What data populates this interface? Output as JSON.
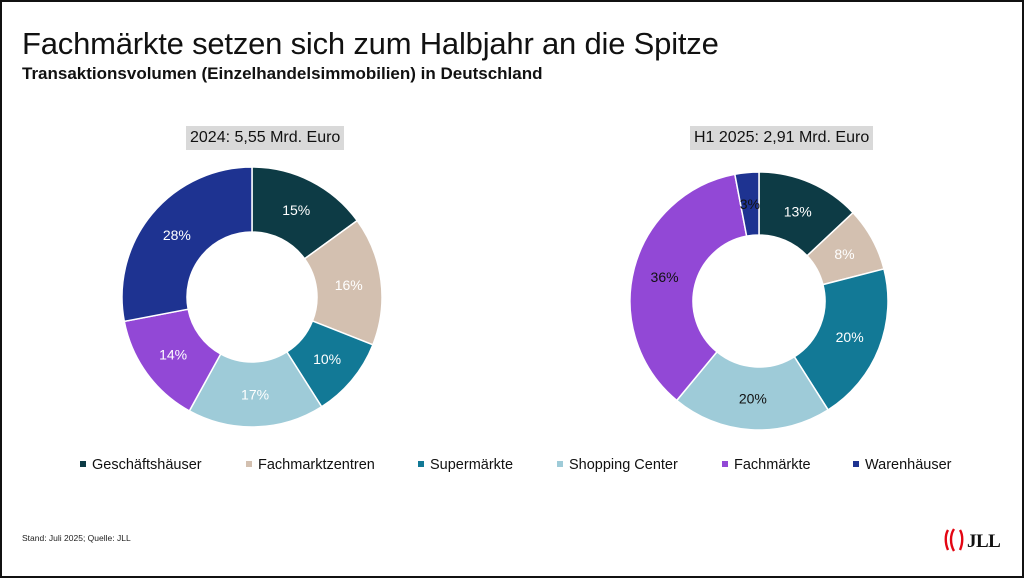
{
  "title": "Fachmärkte setzen sich zum Halbjahr an die Spitze",
  "subtitle": "Transaktionsvolumen (Einzelhandelsimmobilien) in Deutschland",
  "colors": {
    "Geschäftshäuser": "#0d3b45",
    "Fachmarktzentren": "#d3c0b0",
    "Supermärkte": "#127996",
    "Shopping Center": "#9ecbd8",
    "Fachmärkte": "#9248d6",
    "Warenhäuser": "#1e3391"
  },
  "legend": [
    "Geschäftshäuser",
    "Fachmarktzentren",
    "Supermärkte",
    "Shopping Center",
    "Fachmärkte",
    "Warenhäuser"
  ],
  "chart_data": [
    {
      "type": "donut",
      "title": "2024: 5,55 Mrd. Euro",
      "categories": [
        "Geschäftshäuser",
        "Fachmarktzentren",
        "Supermärkte",
        "Shopping Center",
        "Fachmärkte",
        "Warenhäuser"
      ],
      "values": [
        15,
        16,
        10,
        17,
        14,
        28
      ],
      "labels": [
        "15%",
        "16%",
        "10%",
        "17%",
        "14%",
        "28%"
      ],
      "unit": "%"
    },
    {
      "type": "donut",
      "title": "H1 2025: 2,91 Mrd. Euro",
      "categories": [
        "Geschäftshäuser",
        "Fachmarktzentren",
        "Supermärkte",
        "Shopping Center",
        "Fachmärkte",
        "Warenhäuser"
      ],
      "values": [
        13,
        8,
        20,
        20,
        36,
        3
      ],
      "labels": [
        "13%",
        "8%",
        "20%",
        "20%",
        "36%",
        "3%"
      ],
      "unit": "%"
    }
  ],
  "footnote": "Stand: Juli 2025; Quelle: JLL",
  "logo": {
    "text": "JLL",
    "icon": "jll-flame-icon",
    "color": "#e30613"
  }
}
